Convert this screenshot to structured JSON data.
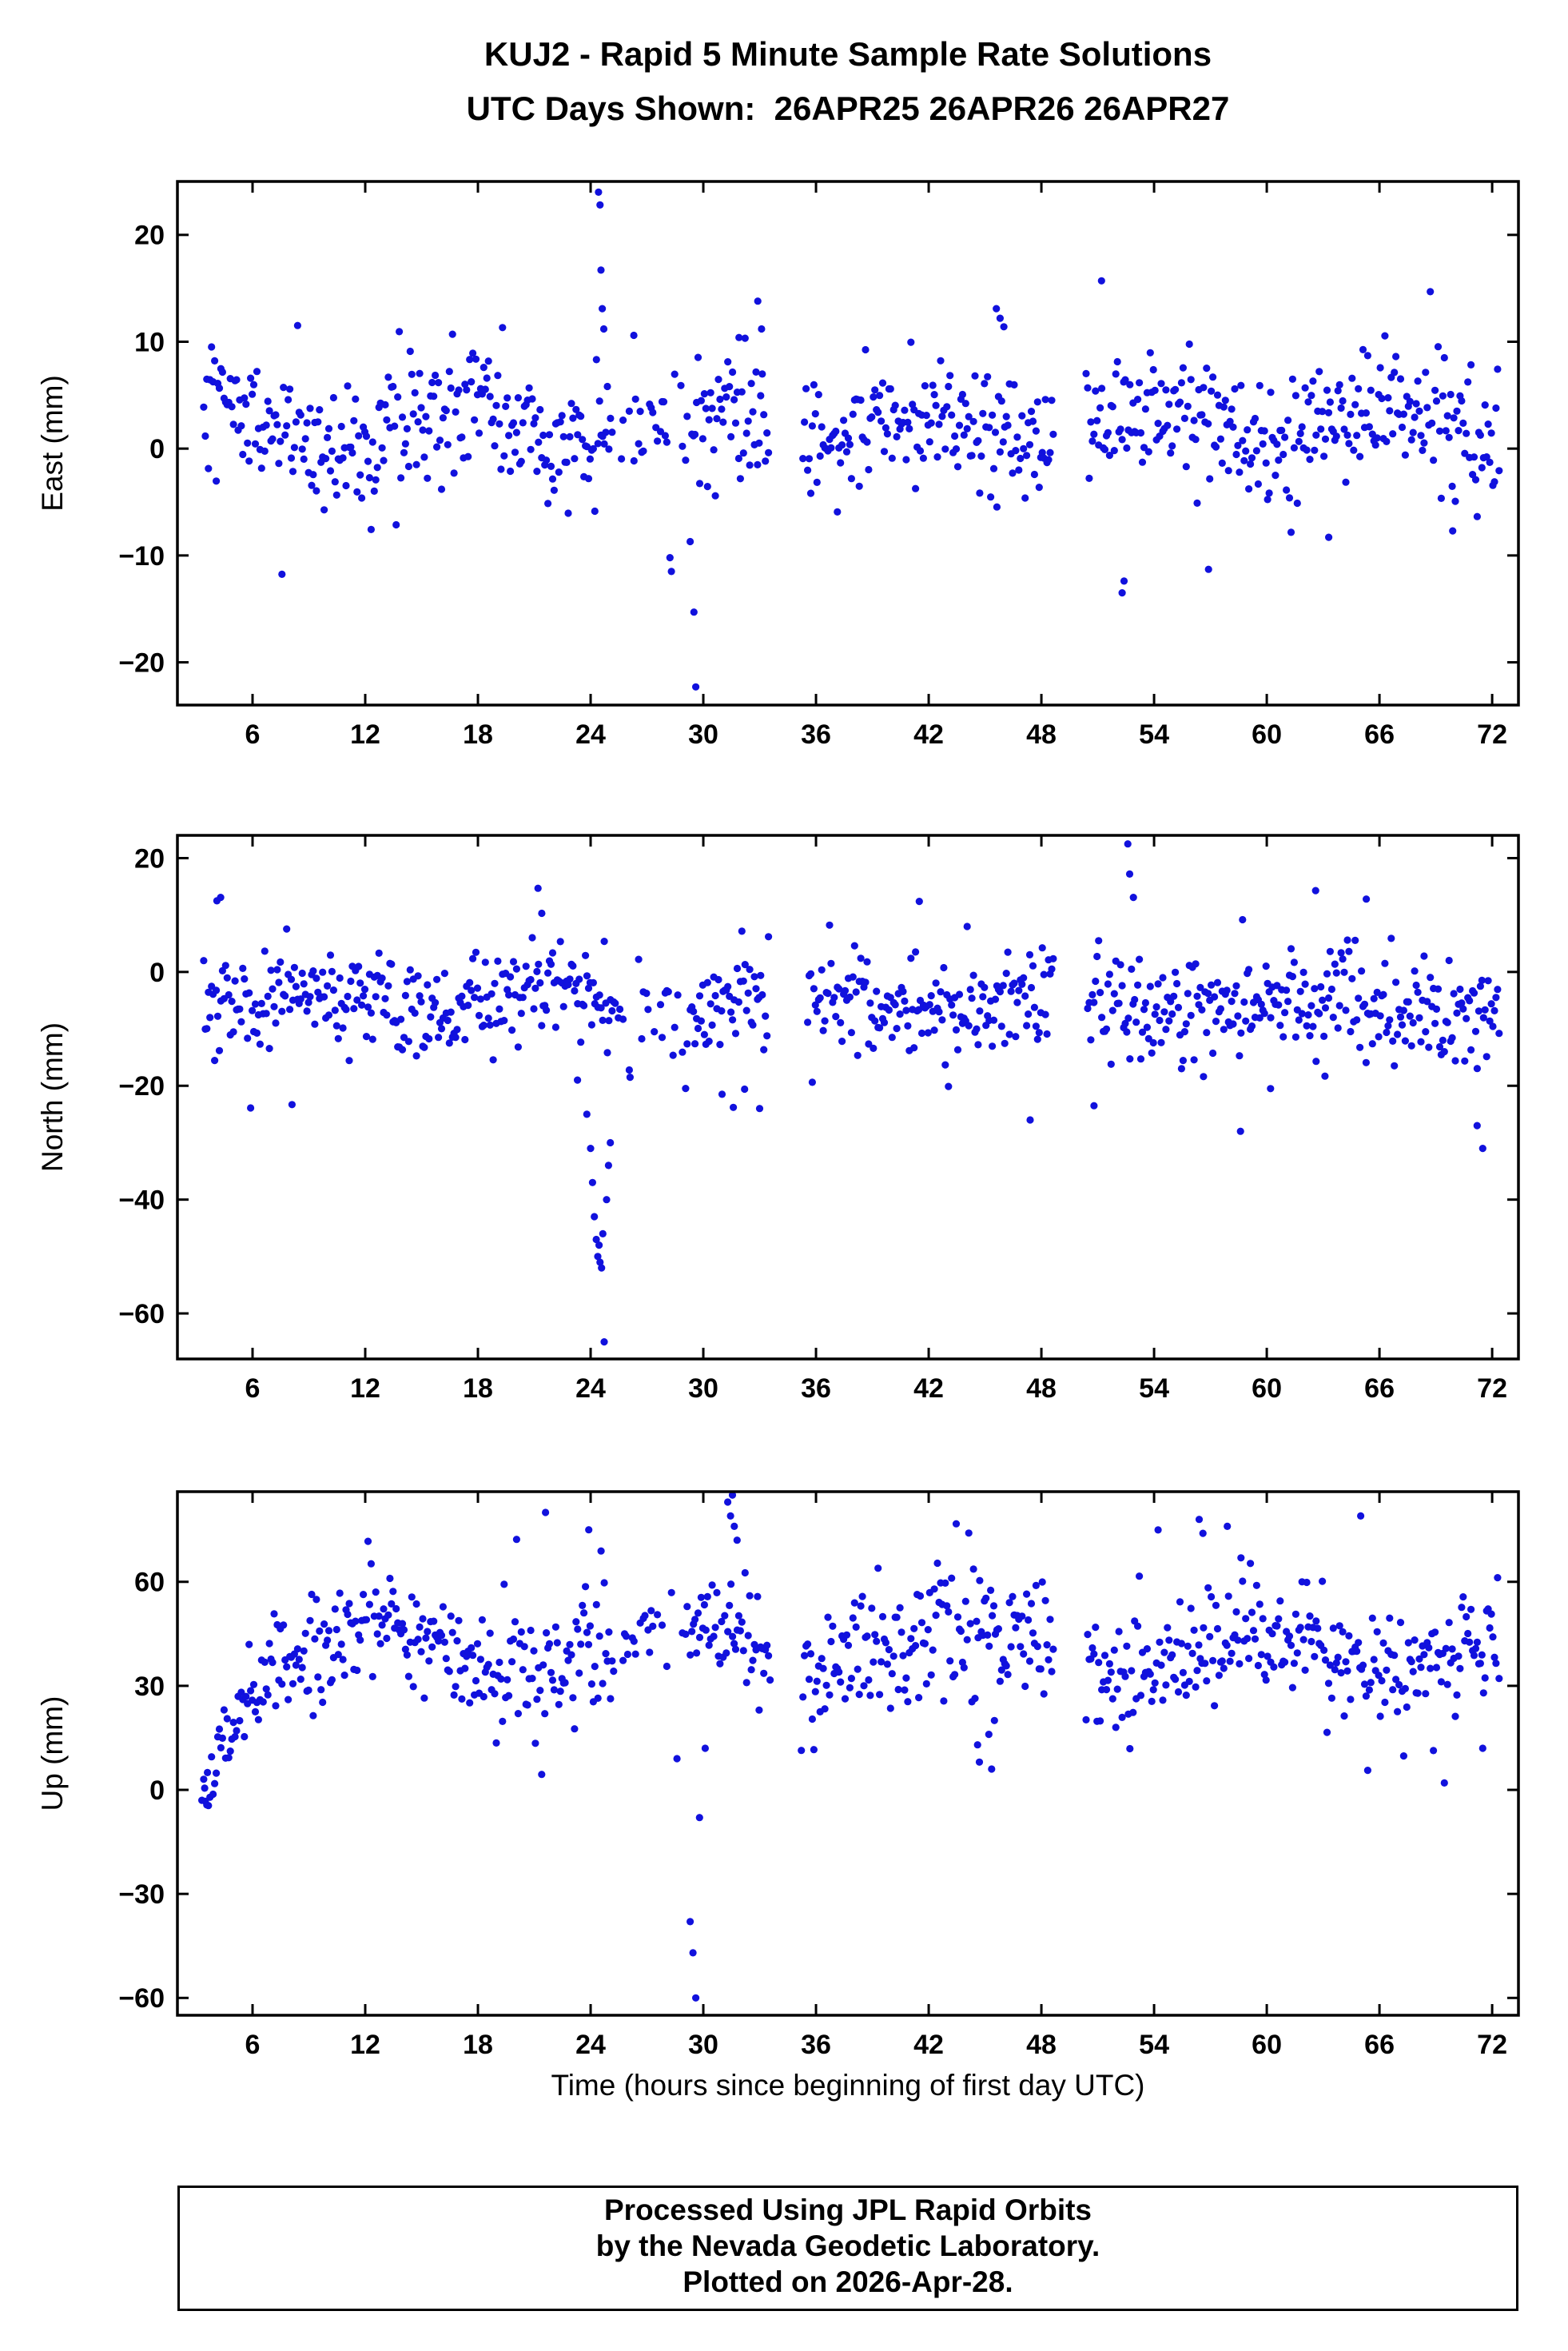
{
  "page": {
    "title_line1": "KUJ2 - Rapid 5 Minute Sample Rate Solutions",
    "title_line2": "UTC Days Shown:  26APR25 26APR26 26APR27"
  },
  "chart_meta": {
    "xlabel": "Time (hours since beginning of first day UTC)",
    "point_color": "#1111dd",
    "axis_color": "#000000",
    "point_radius": 4.6,
    "grid": "off",
    "legend": "none"
  },
  "footer": {
    "lines": [
      "Processed Using JPL Rapid Orbits",
      "by the Nevada Geodetic Laboratory.",
      "Plotted on 2026-Apr-28."
    ]
  },
  "chart_data": [
    {
      "type": "scatter",
      "name": "east",
      "ylabel": "East (mm)",
      "ylim": [
        -24,
        25
      ],
      "yticks": [
        -20,
        -10,
        0,
        10,
        20
      ],
      "xlim": [
        2,
        73.4
      ],
      "xticks": [
        6,
        12,
        18,
        24,
        30,
        36,
        42,
        48,
        54,
        60,
        66,
        72
      ],
      "sample": {
        "start": 3.4,
        "end": 72.4,
        "step": 0.0833
      },
      "seed": 101,
      "base": 2.0,
      "sd": 3.1,
      "tail_prob": 0.05,
      "tail_scale": 2.2,
      "wave": {
        "amp": 1.6,
        "period": 12.5,
        "phase": 1.5
      },
      "ramp": null,
      "sparse": [
        [
          25.2,
          29.35,
          0.5
        ]
      ],
      "gaps": [
        [
          33.55,
          35.3
        ],
        [
          48.7,
          50.35
        ]
      ],
      "outliers": [
        [
          24.42,
          24.0
        ],
        [
          24.5,
          22.8
        ],
        [
          24.55,
          16.7
        ],
        [
          24.62,
          13.1
        ],
        [
          24.7,
          11.2
        ],
        [
          26.3,
          10.6
        ],
        [
          28.3,
          -11.5
        ],
        [
          29.3,
          -8.7
        ],
        [
          29.5,
          -15.3
        ],
        [
          29.6,
          -22.3
        ],
        [
          31.9,
          10.4
        ],
        [
          32.9,
          13.8
        ],
        [
          33.1,
          11.2
        ],
        [
          45.6,
          13.1
        ],
        [
          45.8,
          12.2
        ],
        [
          46.0,
          11.4
        ],
        [
          51.2,
          15.7
        ],
        [
          52.3,
          -13.5
        ],
        [
          52.4,
          -12.4
        ],
        [
          56.9,
          -11.3
        ],
        [
          63.3,
          -8.3
        ],
        [
          69.9,
          -7.7
        ]
      ]
    },
    {
      "type": "scatter",
      "name": "north",
      "ylabel": "North (mm)",
      "ylim": [
        -68,
        24
      ],
      "yticks": [
        -60,
        -40,
        -20,
        0,
        20
      ],
      "xlim": [
        2,
        73.4
      ],
      "xticks": [
        6,
        12,
        18,
        24,
        30,
        36,
        42,
        48,
        54,
        60,
        66,
        72
      ],
      "sample": {
        "start": 3.4,
        "end": 72.4,
        "step": 0.0833
      },
      "seed": 202,
      "base": -5.2,
      "sd": 4.4,
      "tail_prob": 0.05,
      "tail_scale": 2.0,
      "wave": {
        "amp": 2.2,
        "period": 13.5,
        "phase": 5
      },
      "ramp": null,
      "sparse": [
        [
          25.3,
          29.3,
          0.45
        ]
      ],
      "gaps": [
        [
          33.55,
          35.5
        ],
        [
          48.7,
          50.45
        ]
      ],
      "outliers": [
        [
          4.1,
          12.5
        ],
        [
          4.3,
          13.1
        ],
        [
          8.1,
          -23.3
        ],
        [
          21.2,
          14.7
        ],
        [
          21.4,
          10.3
        ],
        [
          23.3,
          -19.0
        ],
        [
          23.8,
          -25.0
        ],
        [
          24.0,
          -31.0
        ],
        [
          24.1,
          -37.0
        ],
        [
          24.2,
          -43.0
        ],
        [
          24.3,
          -47.0
        ],
        [
          24.38,
          -50.0
        ],
        [
          24.45,
          -48.0
        ],
        [
          24.5,
          -51.0
        ],
        [
          24.58,
          -52.0
        ],
        [
          24.65,
          -46.0
        ],
        [
          24.72,
          -65.0
        ],
        [
          24.85,
          -40.0
        ],
        [
          24.95,
          -34.0
        ],
        [
          25.05,
          -30.0
        ],
        [
          26.1,
          -18.5
        ],
        [
          31.0,
          -21.5
        ],
        [
          31.6,
          -23.8
        ],
        [
          32.2,
          -20.6
        ],
        [
          33.0,
          -24.0
        ],
        [
          41.5,
          12.4
        ],
        [
          47.4,
          -26.0
        ],
        [
          50.8,
          -23.5
        ],
        [
          52.6,
          22.5
        ],
        [
          52.7,
          17.2
        ],
        [
          52.9,
          13.1
        ],
        [
          58.6,
          -28.0
        ],
        [
          60.2,
          -20.5
        ],
        [
          62.6,
          14.3
        ],
        [
          63.1,
          -18.3
        ],
        [
          65.3,
          12.8
        ],
        [
          71.2,
          -27.0
        ],
        [
          71.5,
          -31.0
        ]
      ]
    },
    {
      "type": "scatter",
      "name": "up",
      "ylabel": "Up (mm)",
      "ylim": [
        -65,
        86
      ],
      "yticks": [
        -60,
        -30,
        0,
        30,
        60
      ],
      "xlim": [
        2,
        73.4
      ],
      "xticks": [
        6,
        12,
        18,
        24,
        30,
        36,
        42,
        48,
        54,
        60,
        66,
        72
      ],
      "sample": {
        "start": 3.4,
        "end": 72.4,
        "step": 0.0833
      },
      "seed": 303,
      "base": 40,
      "sd": 8.5,
      "tail_prob": 0.05,
      "tail_scale": 1.9,
      "wave": {
        "amp": 6.5,
        "period": 15.5,
        "phase": 9
      },
      "ramp": {
        "until": 7.0,
        "from": 2
      },
      "sparse": [
        [
          25.3,
          29.3,
          0.5
        ]
      ],
      "gaps": [
        [
          33.6,
          35.2
        ],
        [
          48.7,
          50.3
        ]
      ],
      "outliers": [
        [
          3.3,
          -3.0
        ],
        [
          3.45,
          0.5
        ],
        [
          3.6,
          5.0
        ],
        [
          21.6,
          80.0
        ],
        [
          23.9,
          75.0
        ],
        [
          28.6,
          9.0
        ],
        [
          29.3,
          -38.0
        ],
        [
          29.45,
          -47.0
        ],
        [
          29.6,
          -60.0
        ],
        [
          29.8,
          -8.0
        ],
        [
          30.1,
          12.0
        ],
        [
          31.3,
          83.0
        ],
        [
          31.45,
          79.0
        ],
        [
          31.55,
          85.0
        ],
        [
          31.65,
          76.0
        ],
        [
          31.8,
          72.0
        ],
        [
          44.6,
          13.0
        ],
        [
          44.7,
          8.0
        ],
        [
          45.2,
          16.0
        ],
        [
          45.35,
          6.0
        ],
        [
          45.5,
          20.0
        ],
        [
          56.4,
          78.0
        ],
        [
          56.6,
          74.0
        ],
        [
          57.9,
          76.0
        ],
        [
          65.0,
          79.0
        ],
        [
          71.5,
          12.0
        ]
      ]
    }
  ]
}
